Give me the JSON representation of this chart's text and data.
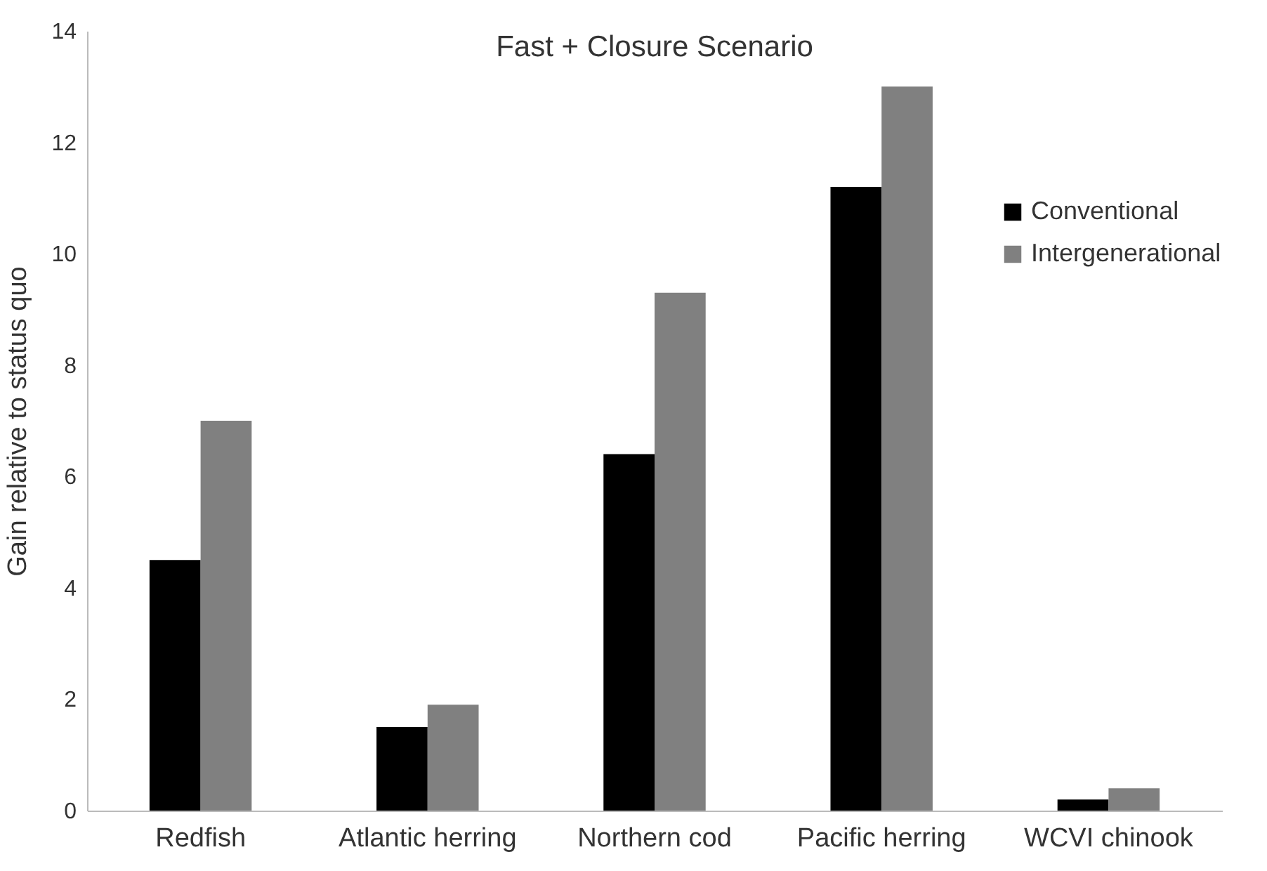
{
  "chart_data": {
    "type": "bar",
    "title": "Fast + Closure Scenario",
    "ylabel": "Gain relative to status quo",
    "categories": [
      "Redfish",
      "Atlantic herring",
      "Northern cod",
      "Pacific herring",
      "WCVI chinook"
    ],
    "series": [
      {
        "name": "Conventional",
        "color": "#000000",
        "values": [
          4.5,
          1.5,
          6.4,
          11.2,
          0.2
        ]
      },
      {
        "name": "Intergenerational",
        "color": "#808080",
        "values": [
          7.0,
          1.9,
          9.3,
          13.0,
          0.4
        ]
      }
    ],
    "ylim": [
      0,
      14
    ],
    "yticks": [
      0,
      2,
      4,
      6,
      8,
      10,
      12,
      14
    ],
    "grid": false,
    "legend": "right"
  }
}
